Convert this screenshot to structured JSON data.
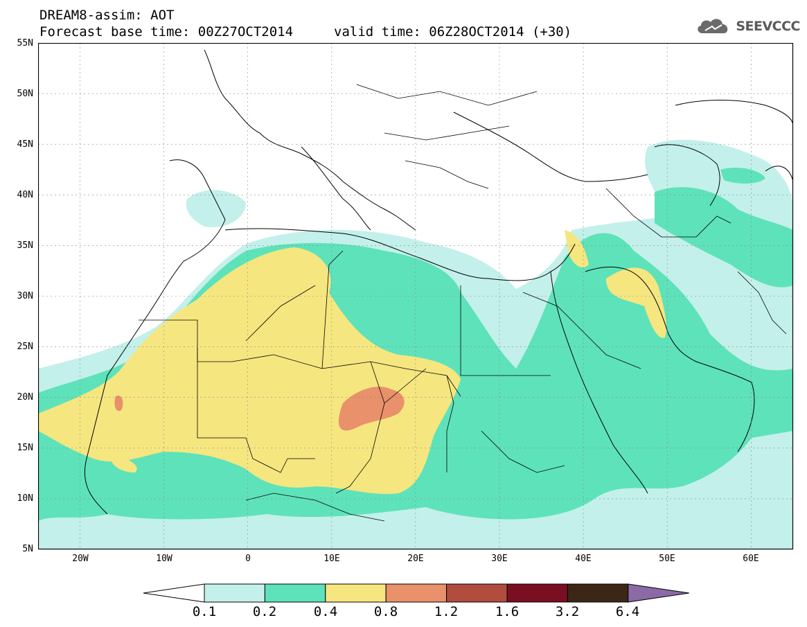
{
  "header": {
    "line1": "DREAM8-assim: AOT",
    "line2": "Forecast base time: 00Z27OCT2014",
    "line3": "valid time: 06Z28OCT2014 (+30)"
  },
  "logo": {
    "text": "SEEVCCC",
    "icon": "cloud-icon"
  },
  "axes": {
    "lat_labels": [
      "55N",
      "50N",
      "45N",
      "40N",
      "35N",
      "30N",
      "25N",
      "20N",
      "15N",
      "10N",
      "5N"
    ],
    "lon_labels": [
      "20W",
      "10W",
      "0",
      "10E",
      "20E",
      "30E",
      "40E",
      "50E",
      "60E"
    ]
  },
  "map": {
    "lon_range": [
      -25,
      65
    ],
    "lat_range": [
      5,
      55
    ],
    "grid": true
  },
  "legend": {
    "labels": [
      "0.1",
      "0.2",
      "0.4",
      "0.8",
      "1.2",
      "1.6",
      "3.2",
      "6.4"
    ],
    "colors": [
      "#ffffff",
      "#c3f0ea",
      "#5ee2ba",
      "#f6e680",
      "#e8916a",
      "#b04d3f",
      "#7a0f22",
      "#3c2716",
      "#8b6aa6"
    ]
  }
}
